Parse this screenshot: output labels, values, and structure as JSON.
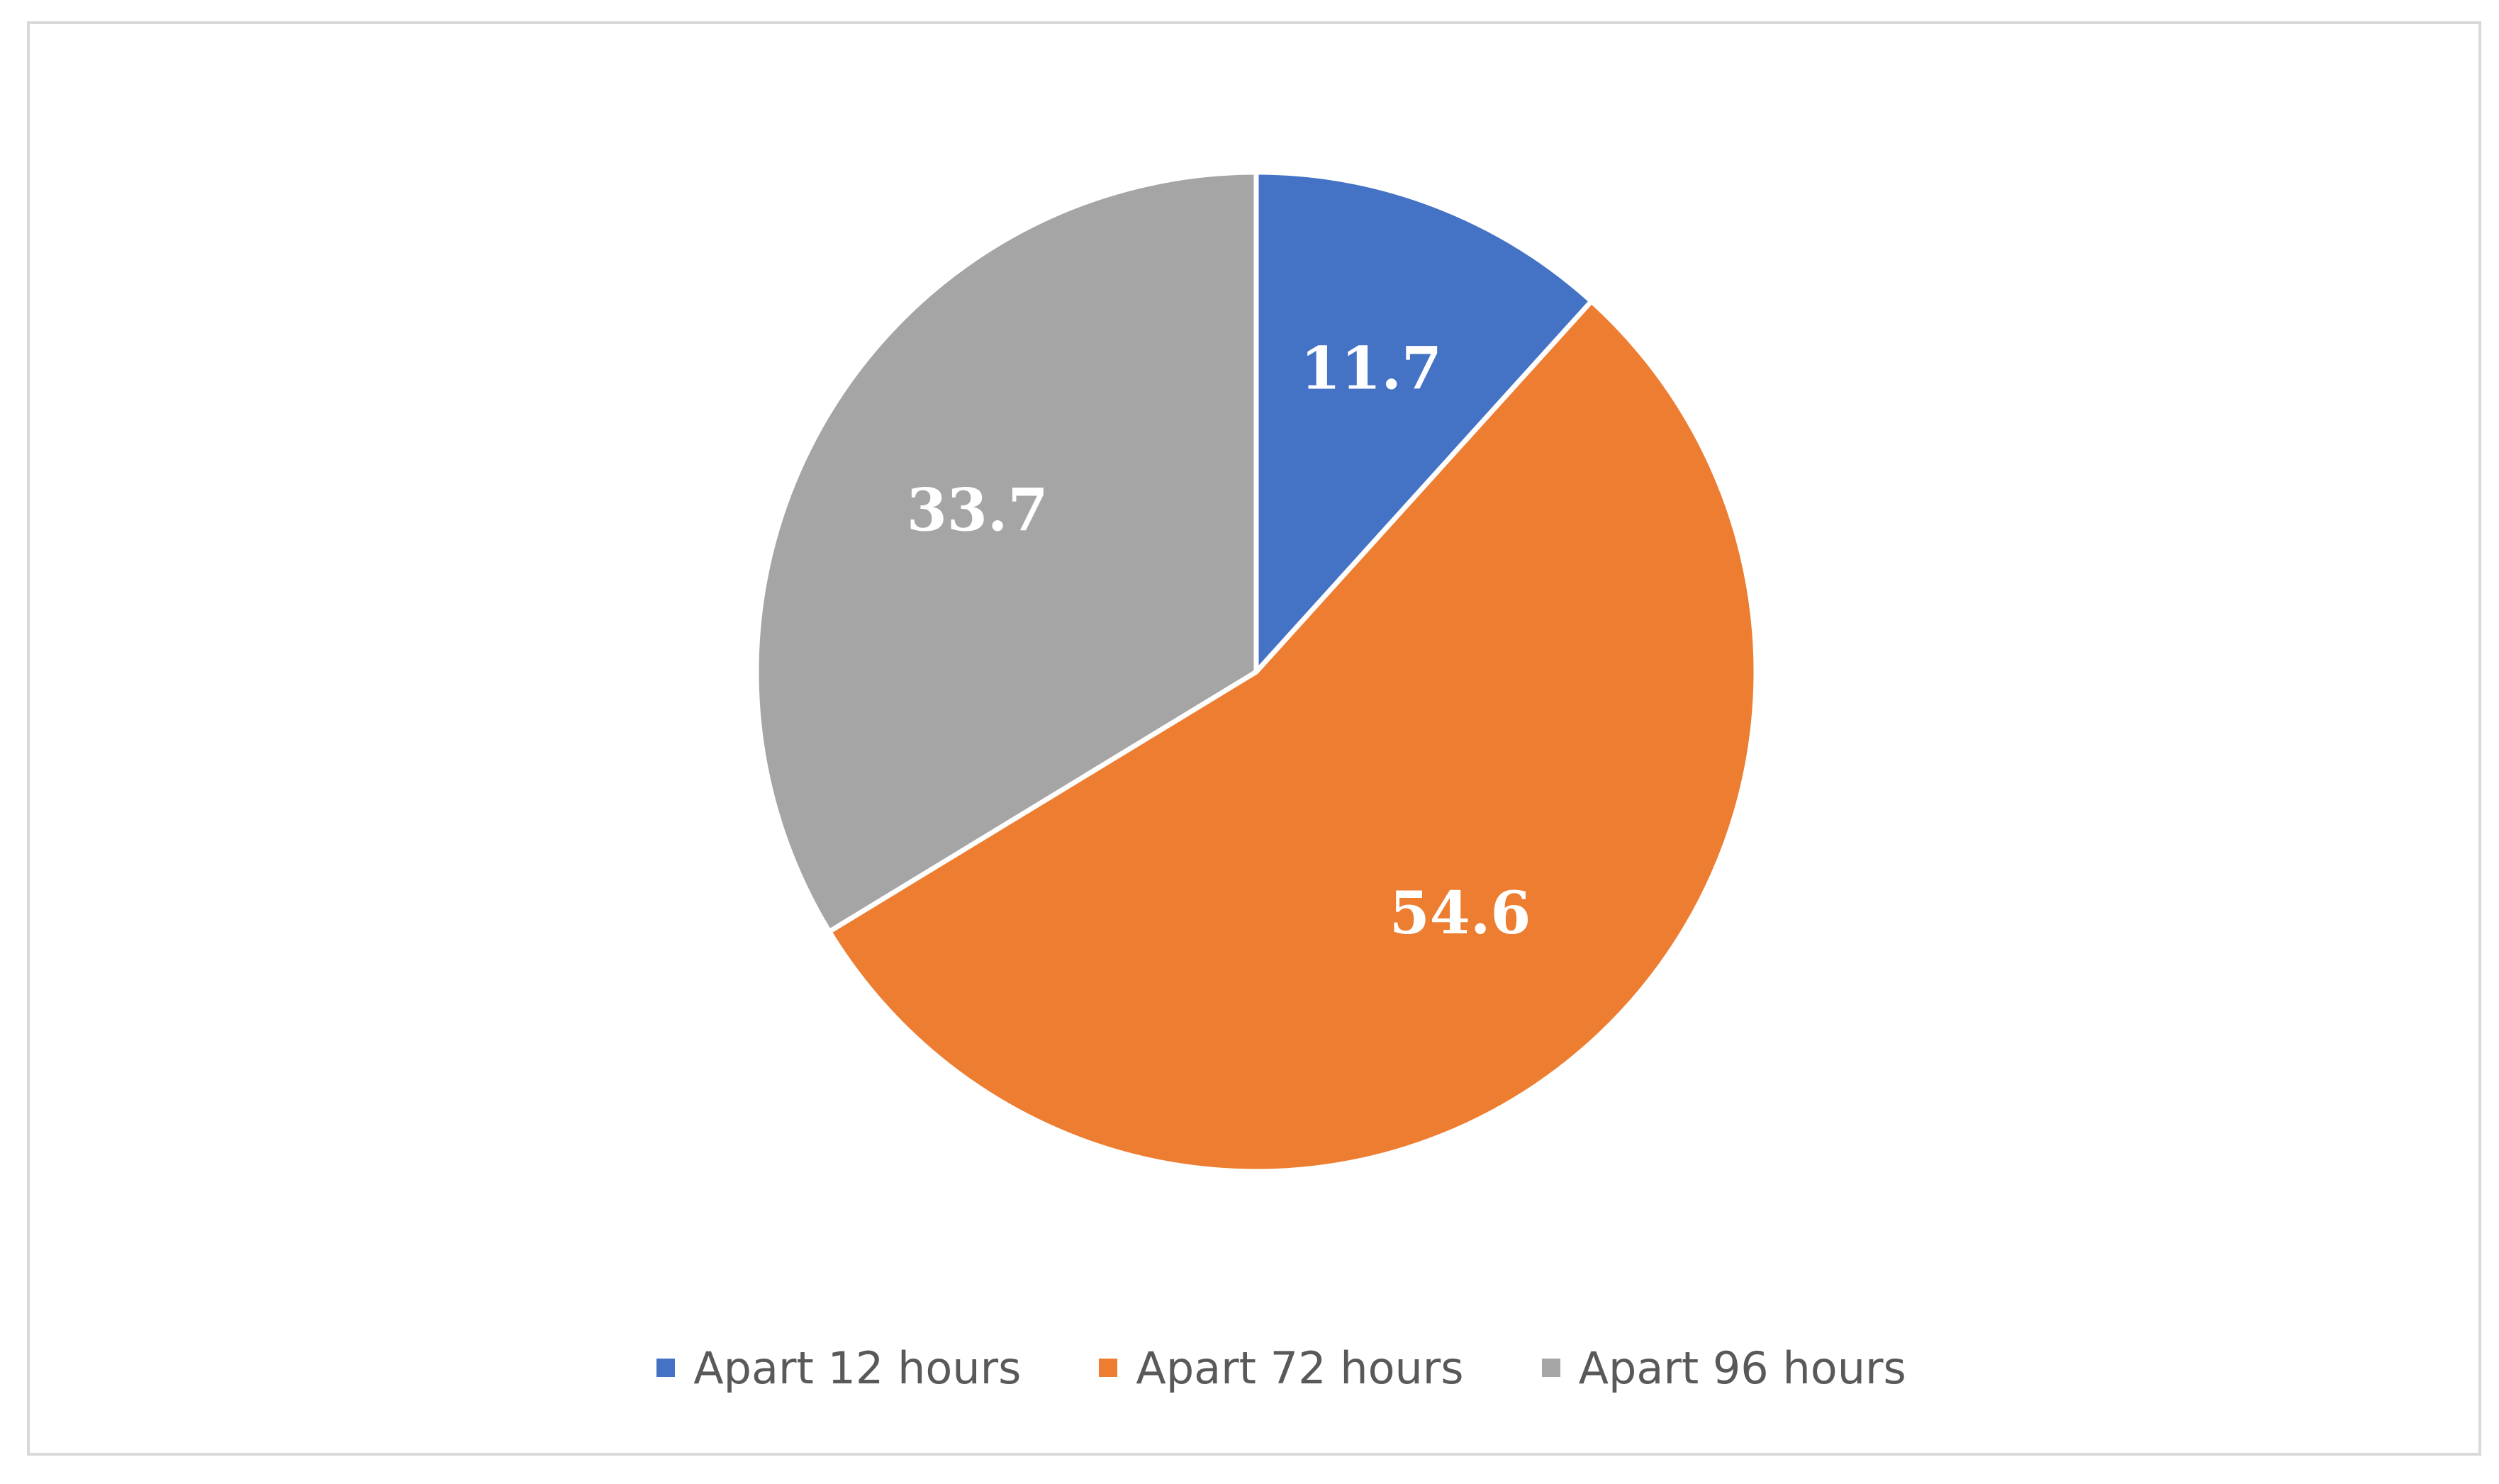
{
  "chart_data": {
    "type": "pie",
    "title": "",
    "categories": [
      "Apart 12 hours",
      "Apart 72 hours",
      "Apart 96 hours"
    ],
    "values": [
      11.7,
      54.6,
      33.7
    ],
    "labels": [
      "11.7",
      "54.6",
      "33.7"
    ],
    "colors": [
      "#4472c4",
      "#ed7d31",
      "#a5a5a5"
    ],
    "legend_position": "bottom",
    "start_angle": "12 o'clock",
    "direction": "clockwise"
  }
}
